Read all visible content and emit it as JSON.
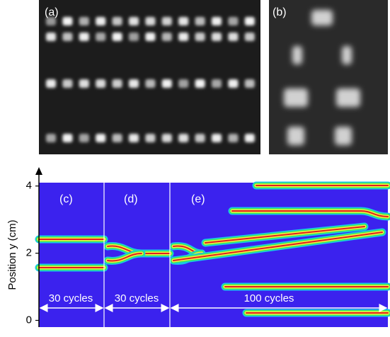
{
  "panels": {
    "a": "(a)",
    "b": "(b)",
    "c": "(c)",
    "d": "(d)",
    "e": "(e)"
  },
  "axis": {
    "label": "Position y (cm)",
    "ylim": [
      -0.2,
      4.1
    ],
    "yticks": [
      0,
      2,
      4
    ]
  },
  "durations": [
    "30 cycles",
    "30 cycles",
    "100 cycles"
  ]
}
